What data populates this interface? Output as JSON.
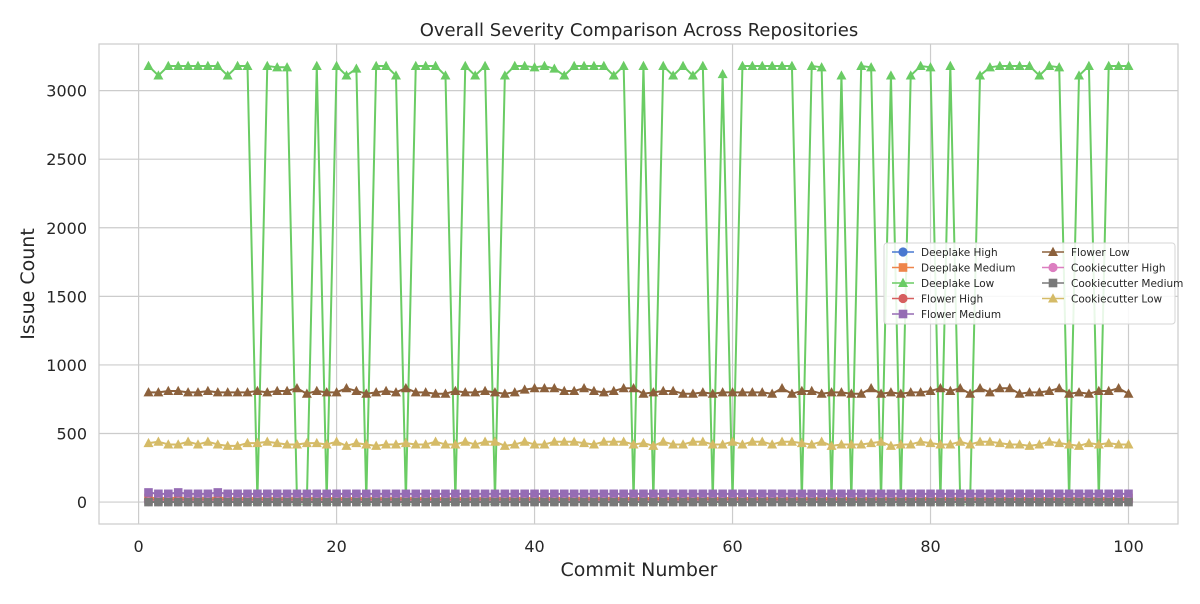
{
  "chart_data": {
    "type": "line",
    "title": "Overall Severity Comparison Across Repositories",
    "xlabel": "Commit Number",
    "ylabel": "Issue Count",
    "xlim": [
      -4,
      105
    ],
    "ylim": [
      -160,
      3340
    ],
    "xticks": [
      0,
      20,
      40,
      60,
      80,
      100
    ],
    "yticks": [
      0,
      500,
      1000,
      1500,
      2000,
      2500,
      3000
    ],
    "grid": true,
    "legend_position": "center-right",
    "series": [
      {
        "name": "Deeplake High",
        "color": "#4878d0",
        "marker": "circle",
        "values": [
          5,
          5,
          5,
          5,
          5,
          5,
          5,
          5,
          5,
          5,
          5,
          5,
          5,
          5,
          5,
          5,
          5,
          5,
          5,
          5,
          5,
          5,
          5,
          5,
          5,
          5,
          5,
          5,
          5,
          5,
          5,
          5,
          5,
          5,
          5,
          5,
          5,
          5,
          5,
          5,
          5,
          5,
          5,
          5,
          5,
          5,
          5,
          5,
          5,
          5,
          5,
          5,
          5,
          5,
          5,
          5,
          5,
          5,
          5,
          5,
          5,
          5,
          5,
          5,
          5,
          5,
          5,
          5,
          5,
          5,
          5,
          5,
          5,
          5,
          5,
          5,
          5,
          5,
          5,
          5,
          5,
          5,
          5,
          5,
          5,
          5,
          5,
          5,
          5,
          5,
          5,
          5,
          5,
          5,
          5,
          5,
          5,
          5,
          5,
          5
        ]
      },
      {
        "name": "Deeplake Medium",
        "color": "#ee854a",
        "marker": "square",
        "values": [
          30,
          30,
          30,
          30,
          30,
          30,
          30,
          30,
          30,
          30,
          30,
          30,
          30,
          30,
          30,
          30,
          30,
          30,
          30,
          30,
          30,
          30,
          30,
          30,
          30,
          30,
          30,
          30,
          30,
          30,
          30,
          30,
          30,
          30,
          30,
          30,
          30,
          30,
          30,
          30,
          30,
          30,
          30,
          30,
          30,
          30,
          30,
          30,
          30,
          30,
          30,
          30,
          30,
          30,
          30,
          30,
          30,
          30,
          30,
          30,
          30,
          30,
          30,
          30,
          30,
          30,
          30,
          30,
          30,
          30,
          30,
          30,
          30,
          30,
          30,
          30,
          30,
          30,
          30,
          30,
          30,
          30,
          30,
          30,
          30,
          30,
          30,
          30,
          30,
          30,
          30,
          30,
          30,
          30,
          30,
          30,
          30,
          30,
          30,
          30
        ]
      },
      {
        "name": "Deeplake Low",
        "color": "#6acc64",
        "marker": "triangle",
        "values": [
          3180,
          3110,
          3180,
          3180,
          3180,
          3180,
          3180,
          3180,
          3110,
          3180,
          3180,
          10,
          3180,
          3170,
          3170,
          10,
          10,
          3180,
          10,
          3180,
          3110,
          3160,
          10,
          3180,
          3180,
          3110,
          10,
          3180,
          3180,
          3180,
          3110,
          10,
          3180,
          3110,
          3180,
          10,
          3110,
          3180,
          3180,
          3170,
          3180,
          3160,
          3110,
          3180,
          3180,
          3180,
          3180,
          3110,
          3180,
          10,
          3180,
          10,
          3180,
          3110,
          3180,
          3110,
          3180,
          10,
          3120,
          10,
          3180,
          3180,
          3180,
          3180,
          3180,
          3180,
          10,
          3180,
          3170,
          10,
          3110,
          10,
          3180,
          3170,
          10,
          3110,
          10,
          3110,
          3180,
          3170,
          10,
          3180,
          10,
          10,
          3110,
          3170,
          3180,
          3180,
          3180,
          3180,
          3110,
          3180,
          3170,
          10,
          3110,
          3180,
          10,
          3180,
          3180,
          3180
        ]
      },
      {
        "name": "Flower High",
        "color": "#d65f5f",
        "marker": "circle",
        "values": [
          15,
          15,
          15,
          15,
          15,
          15,
          15,
          15,
          15,
          15,
          15,
          15,
          15,
          15,
          15,
          15,
          15,
          15,
          15,
          15,
          15,
          15,
          15,
          15,
          15,
          15,
          15,
          15,
          15,
          15,
          15,
          15,
          15,
          15,
          15,
          15,
          15,
          15,
          15,
          15,
          15,
          15,
          15,
          15,
          15,
          15,
          15,
          15,
          15,
          15,
          15,
          15,
          15,
          15,
          15,
          15,
          15,
          15,
          15,
          15,
          15,
          15,
          15,
          15,
          15,
          15,
          15,
          15,
          15,
          15,
          15,
          15,
          15,
          15,
          15,
          15,
          15,
          15,
          15,
          15,
          15,
          15,
          15,
          15,
          15,
          15,
          15,
          15,
          15,
          15,
          15,
          15,
          15,
          15,
          15,
          15,
          15,
          15,
          15,
          15
        ]
      },
      {
        "name": "Flower Medium",
        "color": "#956cb4",
        "marker": "square",
        "values": [
          70,
          60,
          60,
          70,
          60,
          60,
          60,
          70,
          60,
          60,
          60,
          60,
          60,
          60,
          60,
          60,
          60,
          60,
          60,
          60,
          60,
          60,
          60,
          60,
          60,
          60,
          60,
          60,
          60,
          60,
          60,
          60,
          60,
          60,
          60,
          60,
          60,
          60,
          60,
          60,
          60,
          60,
          60,
          60,
          60,
          60,
          60,
          60,
          60,
          60,
          60,
          60,
          60,
          60,
          60,
          60,
          60,
          60,
          60,
          60,
          60,
          60,
          60,
          60,
          60,
          60,
          60,
          60,
          60,
          60,
          60,
          60,
          60,
          60,
          60,
          60,
          60,
          60,
          60,
          60,
          60,
          60,
          60,
          60,
          60,
          60,
          60,
          60,
          60,
          60,
          60,
          60,
          60,
          60,
          60,
          60,
          60,
          60,
          60,
          60
        ]
      },
      {
        "name": "Flower Low",
        "color": "#8c613c",
        "marker": "triangle",
        "values": [
          800,
          800,
          810,
          810,
          800,
          800,
          810,
          800,
          800,
          800,
          800,
          810,
          800,
          810,
          810,
          830,
          790,
          810,
          800,
          800,
          830,
          810,
          790,
          800,
          810,
          800,
          830,
          800,
          800,
          790,
          790,
          810,
          800,
          800,
          810,
          800,
          790,
          800,
          820,
          830,
          830,
          830,
          810,
          810,
          830,
          810,
          800,
          810,
          830,
          830,
          790,
          800,
          810,
          810,
          790,
          790,
          800,
          790,
          800,
          800,
          800,
          800,
          800,
          790,
          830,
          790,
          810,
          810,
          790,
          800,
          800,
          790,
          790,
          830,
          790,
          800,
          790,
          800,
          800,
          810,
          830,
          810,
          830,
          790,
          830,
          800,
          830,
          830,
          790,
          800,
          800,
          810,
          830,
          790,
          800,
          790,
          810,
          810,
          830,
          790
        ]
      },
      {
        "name": "Cookiecutter High",
        "color": "#dc7ec0",
        "marker": "circle",
        "values": [
          3,
          3,
          3,
          3,
          3,
          3,
          3,
          3,
          3,
          3,
          3,
          3,
          3,
          3,
          3,
          3,
          3,
          3,
          3,
          3,
          3,
          3,
          3,
          3,
          3,
          3,
          3,
          3,
          3,
          3,
          3,
          3,
          3,
          3,
          3,
          3,
          3,
          3,
          3,
          3,
          3,
          3,
          3,
          3,
          3,
          3,
          3,
          3,
          3,
          3,
          3,
          3,
          3,
          3,
          3,
          3,
          3,
          3,
          3,
          3,
          3,
          3,
          3,
          3,
          3,
          3,
          3,
          3,
          3,
          3,
          3,
          3,
          3,
          3,
          3,
          3,
          3,
          3,
          3,
          3,
          3,
          3,
          3,
          3,
          3,
          3,
          3,
          3,
          3,
          3,
          3,
          3,
          3,
          3,
          3,
          3,
          3,
          3,
          3,
          3
        ]
      },
      {
        "name": "Cookiecutter Medium",
        "color": "#797979",
        "marker": "square",
        "values": [
          0,
          0,
          0,
          0,
          0,
          0,
          0,
          0,
          0,
          0,
          0,
          0,
          0,
          0,
          0,
          0,
          0,
          0,
          0,
          0,
          0,
          0,
          0,
          0,
          0,
          0,
          0,
          0,
          0,
          0,
          0,
          0,
          0,
          0,
          0,
          0,
          0,
          0,
          0,
          0,
          0,
          0,
          0,
          0,
          0,
          0,
          0,
          0,
          0,
          0,
          0,
          0,
          0,
          0,
          0,
          0,
          0,
          0,
          0,
          0,
          0,
          0,
          0,
          0,
          0,
          0,
          0,
          0,
          0,
          0,
          0,
          0,
          0,
          0,
          0,
          0,
          0,
          0,
          0,
          0,
          0,
          0,
          0,
          0,
          0,
          0,
          0,
          0,
          0,
          0,
          0,
          0,
          0,
          0,
          0,
          0,
          0,
          0,
          0,
          0
        ]
      },
      {
        "name": "Cookiecutter Low",
        "color": "#d5bb67",
        "marker": "triangle",
        "values": [
          430,
          440,
          420,
          420,
          440,
          420,
          440,
          420,
          410,
          410,
          430,
          430,
          440,
          430,
          420,
          420,
          430,
          430,
          420,
          440,
          410,
          430,
          420,
          410,
          420,
          420,
          430,
          420,
          420,
          440,
          420,
          420,
          440,
          420,
          440,
          440,
          410,
          420,
          440,
          420,
          420,
          440,
          440,
          440,
          430,
          420,
          440,
          440,
          440,
          420,
          430,
          410,
          440,
          420,
          420,
          440,
          440,
          420,
          420,
          440,
          420,
          440,
          440,
          420,
          440,
          440,
          430,
          420,
          440,
          410,
          420,
          420,
          420,
          430,
          440,
          410,
          420,
          420,
          440,
          430,
          420,
          420,
          440,
          420,
          440,
          440,
          430,
          420,
          420,
          410,
          420,
          440,
          430,
          420,
          410,
          430,
          420,
          430,
          420,
          420
        ]
      }
    ]
  }
}
